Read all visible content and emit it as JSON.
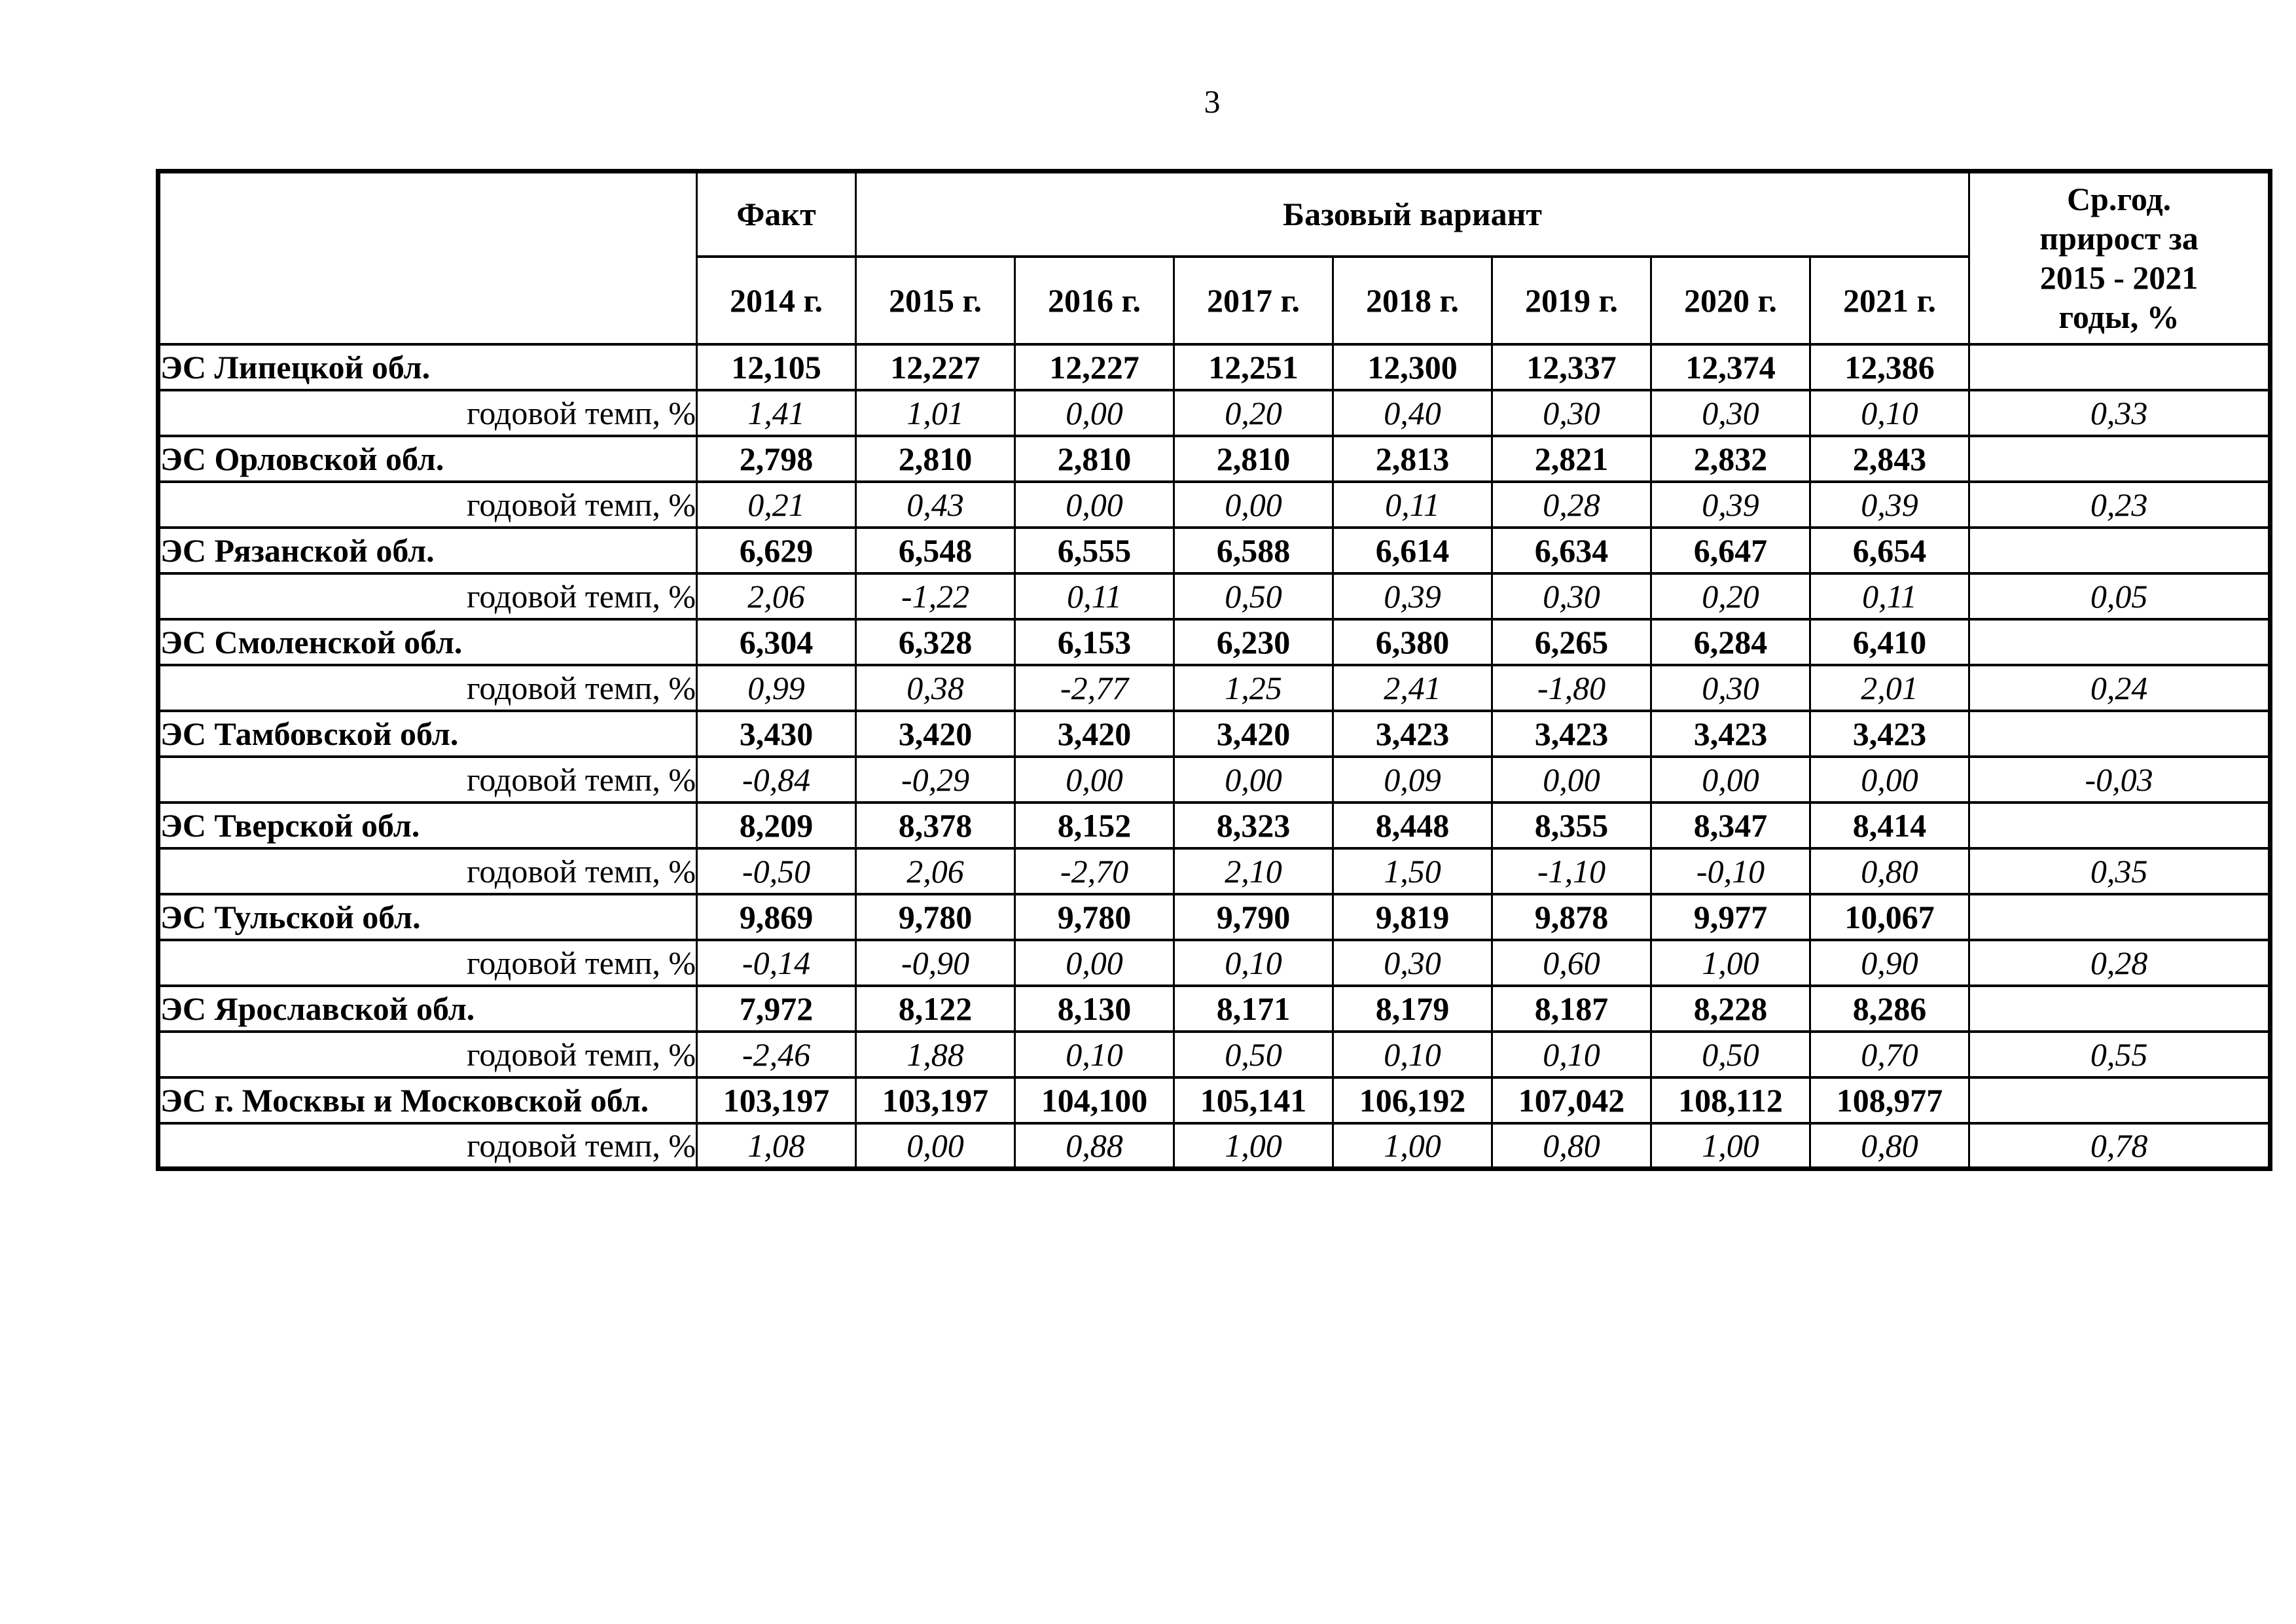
{
  "page": {
    "number": "3"
  },
  "table": {
    "header": {
      "fact": "Факт",
      "base_variant": "Базовый вариант",
      "avg_growth": "Ср.год.\nприрост за\n2015 - 2021\nгоды, %",
      "years": [
        "2014 г.",
        "2015 г.",
        "2016 г.",
        "2017 г.",
        "2018 г.",
        "2019 г.",
        "2020 г.",
        "2021 г."
      ]
    },
    "temp_row_label": "годовой темп, %",
    "rows": [
      {
        "name": "ЭС Липецкой обл.",
        "values": [
          "12,105",
          "12,227",
          "12,227",
          "12,251",
          "12,300",
          "12,337",
          "12,374",
          "12,386"
        ],
        "temps": [
          "1,41",
          "1,01",
          "0,00",
          "0,20",
          "0,40",
          "0,30",
          "0,30",
          "0,10"
        ],
        "avg": "0,33"
      },
      {
        "name": "ЭС Орловской обл.",
        "values": [
          "2,798",
          "2,810",
          "2,810",
          "2,810",
          "2,813",
          "2,821",
          "2,832",
          "2,843"
        ],
        "temps": [
          "0,21",
          "0,43",
          "0,00",
          "0,00",
          "0,11",
          "0,28",
          "0,39",
          "0,39"
        ],
        "avg": "0,23"
      },
      {
        "name": "ЭС Рязанской обл.",
        "values": [
          "6,629",
          "6,548",
          "6,555",
          "6,588",
          "6,614",
          "6,634",
          "6,647",
          "6,654"
        ],
        "temps": [
          "2,06",
          "-1,22",
          "0,11",
          "0,50",
          "0,39",
          "0,30",
          "0,20",
          "0,11"
        ],
        "avg": "0,05"
      },
      {
        "name": "ЭС Смоленской обл.",
        "values": [
          "6,304",
          "6,328",
          "6,153",
          "6,230",
          "6,380",
          "6,265",
          "6,284",
          "6,410"
        ],
        "temps": [
          "0,99",
          "0,38",
          "-2,77",
          "1,25",
          "2,41",
          "-1,80",
          "0,30",
          "2,01"
        ],
        "avg": "0,24"
      },
      {
        "name": "ЭС Тамбовской обл.",
        "values": [
          "3,430",
          "3,420",
          "3,420",
          "3,420",
          "3,423",
          "3,423",
          "3,423",
          "3,423"
        ],
        "temps": [
          "-0,84",
          "-0,29",
          "0,00",
          "0,00",
          "0,09",
          "0,00",
          "0,00",
          "0,00"
        ],
        "avg": "-0,03"
      },
      {
        "name": "ЭС Тверской обл.",
        "values": [
          "8,209",
          "8,378",
          "8,152",
          "8,323",
          "8,448",
          "8,355",
          "8,347",
          "8,414"
        ],
        "temps": [
          "-0,50",
          "2,06",
          "-2,70",
          "2,10",
          "1,50",
          "-1,10",
          "-0,10",
          "0,80"
        ],
        "avg": "0,35"
      },
      {
        "name": "ЭС Тульской обл.",
        "values": [
          "9,869",
          "9,780",
          "9,780",
          "9,790",
          "9,819",
          "9,878",
          "9,977",
          "10,067"
        ],
        "temps": [
          "-0,14",
          "-0,90",
          "0,00",
          "0,10",
          "0,30",
          "0,60",
          "1,00",
          "0,90"
        ],
        "avg": "0,28"
      },
      {
        "name": "ЭС Ярославской обл.",
        "values": [
          "7,972",
          "8,122",
          "8,130",
          "8,171",
          "8,179",
          "8,187",
          "8,228",
          "8,286"
        ],
        "temps": [
          "-2,46",
          "1,88",
          "0,10",
          "0,50",
          "0,10",
          "0,10",
          "0,50",
          "0,70"
        ],
        "avg": "0,55"
      },
      {
        "name": "ЭС г. Москвы и Московской обл.",
        "values": [
          "103,197",
          "103,197",
          "104,100",
          "105,141",
          "106,192",
          "107,042",
          "108,112",
          "108,977"
        ],
        "temps": [
          "1,08",
          "0,00",
          "0,88",
          "1,00",
          "1,00",
          "0,80",
          "1,00",
          "0,80"
        ],
        "avg": "0,78"
      }
    ]
  }
}
